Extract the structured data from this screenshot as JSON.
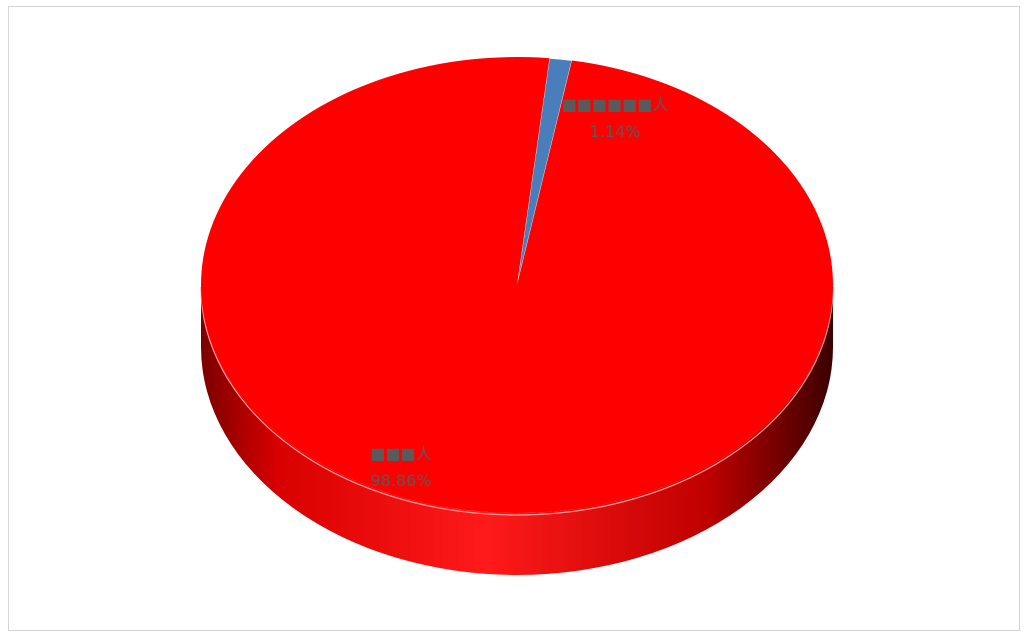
{
  "chart_data": {
    "type": "pie",
    "style": "3d",
    "slices": [
      {
        "label": "■■■人",
        "percent_label": "98.86%",
        "value": 98.86,
        "color": "#ff0000"
      },
      {
        "label": "■■■■■■人",
        "percent_label": "1.14%",
        "value": 1.14,
        "color": "#4a7ebb"
      }
    ],
    "legend": "none"
  }
}
